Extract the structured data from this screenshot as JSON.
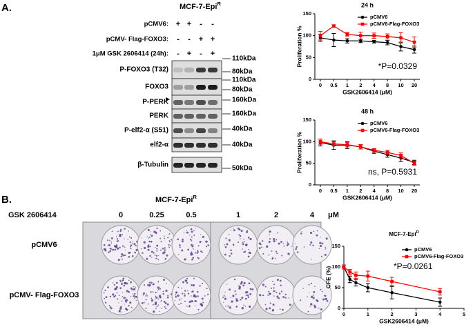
{
  "panel_a": {
    "label": "A.",
    "title": "MCF-7-Epi",
    "title_sup": "R",
    "conditions": [
      {
        "name": "pCMV6:",
        "signs": [
          "+",
          "+",
          "-",
          "-"
        ]
      },
      {
        "name": "pCMV- Flag-FOXO3:",
        "signs": [
          "-",
          "-",
          "+",
          "+"
        ]
      },
      {
        "name": "1μM GSK 2606414 (24h):",
        "signs": [
          "-",
          "+",
          "-",
          "+"
        ]
      }
    ],
    "blots": [
      "P-FOXO3 (T32)",
      "FOXO3",
      "P-PERK",
      "PERK",
      "P-elf2-α (S51)",
      "elf2-α",
      "β-Tubulin"
    ],
    "markers": [
      "110kDa",
      "80kDa",
      "110kDa",
      "80kDa",
      "160kDa",
      "160kDa",
      "40kDa",
      "40kDa",
      "50kDa"
    ]
  },
  "panel_b": {
    "label": "B.",
    "title": "MCF-7-Epi",
    "title_sup": "R",
    "dose_label": "GSK 2606414",
    "doses": [
      "0",
      "0.25",
      "0.5",
      "1",
      "2",
      "4"
    ],
    "unit": "μM",
    "rows": [
      "pCMV6",
      "pCMV- Flag-FOXO3"
    ]
  },
  "chart_data": [
    {
      "type": "line",
      "title": "24 h",
      "x_label": "GSK2606414 (μM)",
      "y_label": "Proliferation %",
      "categories": [
        "0",
        "0.5",
        "1",
        "2",
        "4",
        "8",
        "10",
        "20"
      ],
      "ylim": [
        0,
        150
      ],
      "yticks": [
        0,
        50,
        100,
        150
      ],
      "legend": "upper right",
      "annotation": "*P=0.0329",
      "series": [
        {
          "name": "pCMV6",
          "color": "#000000",
          "values": [
            95,
            90,
            88,
            88,
            86,
            84,
            75,
            68
          ],
          "errors": [
            8,
            15,
            5,
            4,
            3,
            5,
            10,
            8
          ]
        },
        {
          "name": "pCMV6-Flag-FOXO3",
          "color": "#ff0000",
          "values": [
            100,
            122,
            103,
            100,
            100,
            98,
            95,
            85
          ],
          "errors": [
            10,
            3,
            4,
            8,
            6,
            6,
            12,
            12
          ]
        }
      ]
    },
    {
      "type": "line",
      "title": "48 h",
      "x_label": "GSK2606414 (μM)",
      "y_label": "Proliferation %",
      "categories": [
        "0",
        "0.5",
        "1",
        "2",
        "4",
        "8",
        "10",
        "20"
      ],
      "ylim": [
        0,
        150
      ],
      "yticks": [
        0,
        50,
        100,
        150
      ],
      "legend": "upper right",
      "annotation": "ns, P=0.5931",
      "series": [
        {
          "name": "pCMV6",
          "color": "#000000",
          "values": [
            98,
            92,
            92,
            88,
            78,
            70,
            62,
            52
          ],
          "errors": [
            8,
            10,
            8,
            5,
            5,
            6,
            8,
            5
          ]
        },
        {
          "name": "pCMV6-Flag-FOXO3",
          "color": "#ff0000",
          "values": [
            100,
            95,
            93,
            88,
            80,
            75,
            68,
            50
          ],
          "errors": [
            6,
            5,
            5,
            5,
            4,
            5,
            6,
            5
          ]
        }
      ]
    },
    {
      "type": "line",
      "title": "MCF-7-Epi",
      "title_sup": "R",
      "x_label": "GSK2606414 (μM)",
      "y_label": "CFE (%)",
      "x": [
        0,
        0.25,
        0.5,
        1,
        2,
        4
      ],
      "xlim": [
        0,
        5
      ],
      "xticks": [
        0,
        1,
        2,
        3,
        4,
        5
      ],
      "ylim": [
        0,
        150
      ],
      "yticks": [
        0,
        50,
        100,
        150
      ],
      "legend": "upper right",
      "annotation": "*P=0.0261",
      "series": [
        {
          "name": "pCMV6",
          "color": "#000000",
          "values": [
            100,
            70,
            62,
            50,
            38,
            15
          ],
          "errors": [
            5,
            8,
            8,
            10,
            15,
            10
          ]
        },
        {
          "name": "pCMV6-Flag-FOXO3",
          "color": "#ff0000",
          "values": [
            100,
            88,
            80,
            78,
            65,
            40
          ],
          "errors": [
            5,
            6,
            8,
            12,
            10,
            8
          ]
        }
      ]
    }
  ]
}
